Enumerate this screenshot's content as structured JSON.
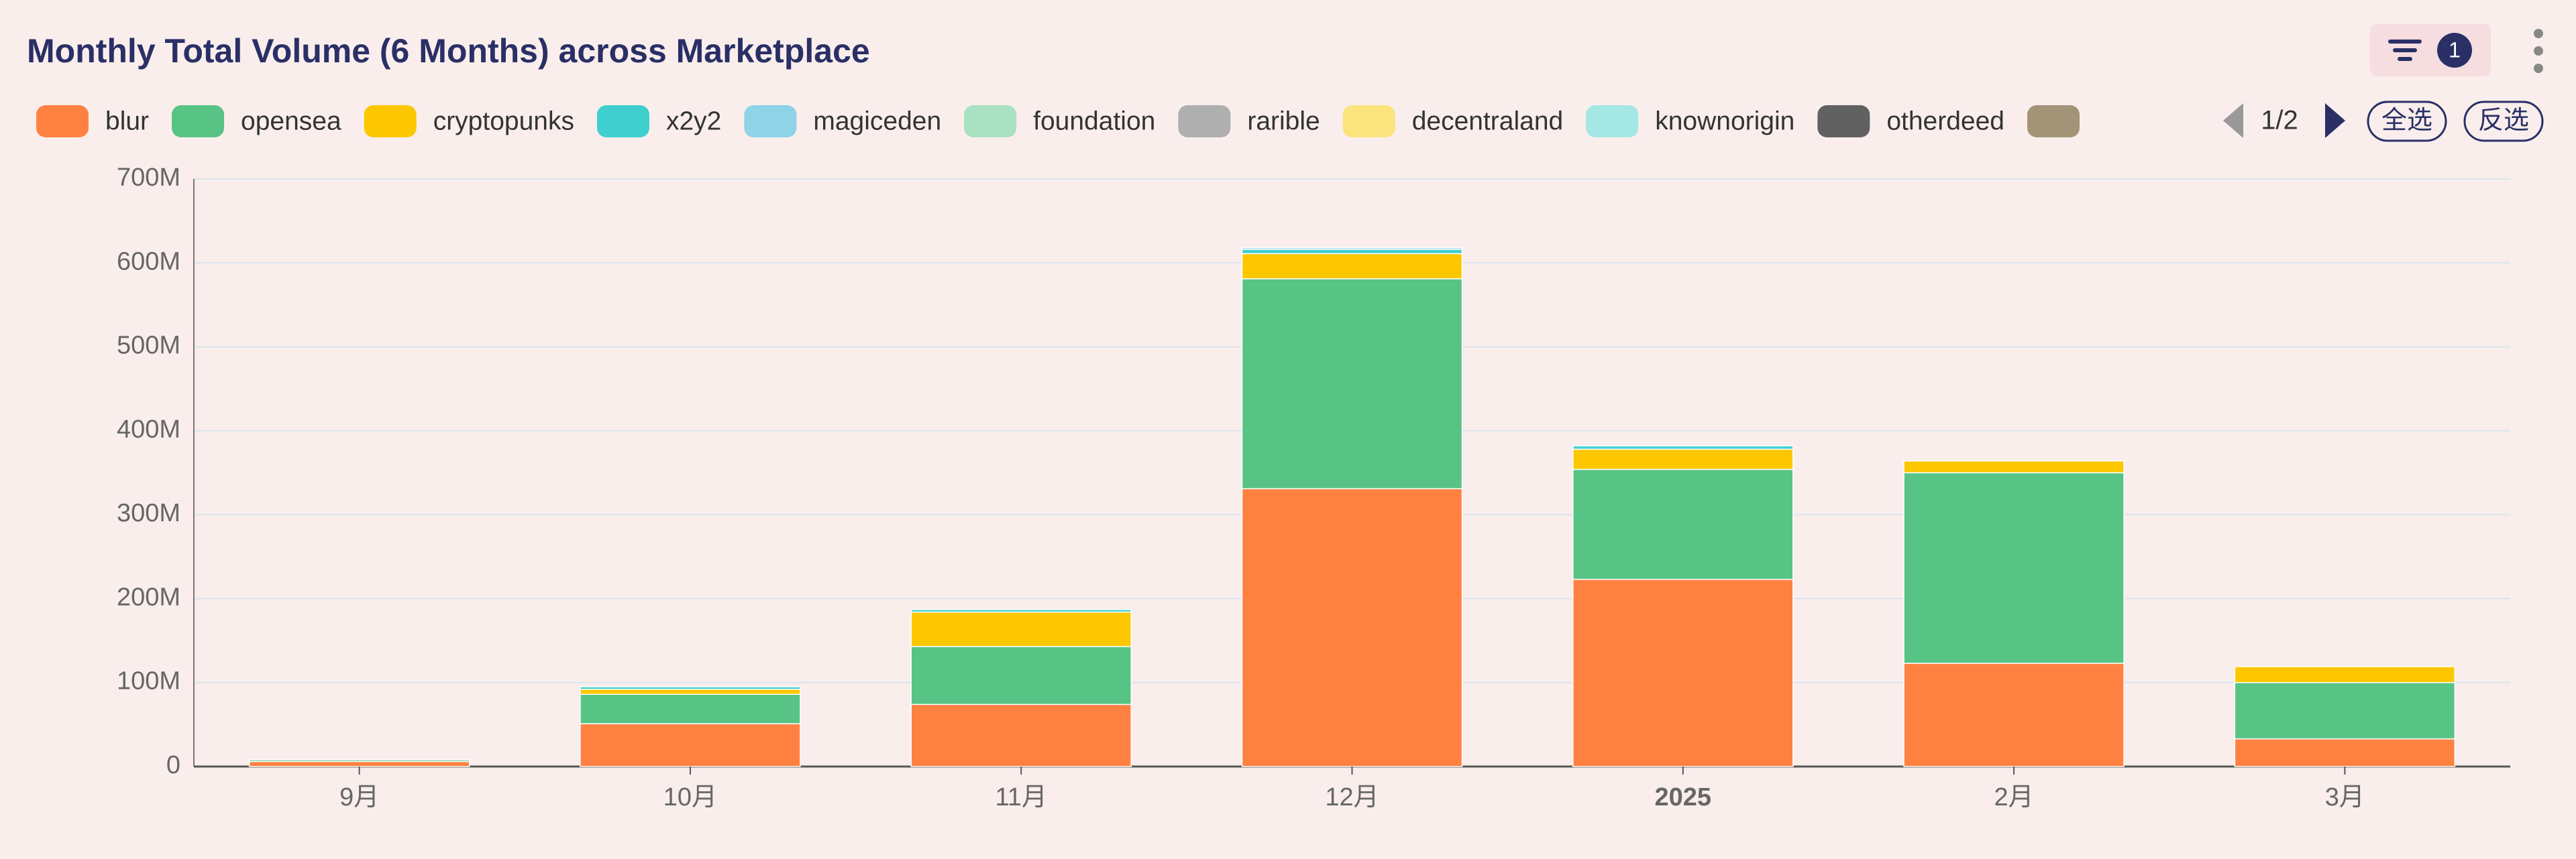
{
  "chart_data": {
    "type": "bar",
    "stacked": true,
    "title": "Monthly Total Volume (6 Months) across Marketplace",
    "categories": [
      "9月",
      "10月",
      "11月",
      "12月",
      "2025",
      "2月",
      "3月"
    ],
    "series": [
      {
        "name": "blur",
        "color": "#ff8142",
        "values": [
          6,
          51,
          74,
          331,
          223,
          123,
          33
        ]
      },
      {
        "name": "opensea",
        "color": "#57c385",
        "values": [
          2,
          35,
          69,
          250,
          131,
          227,
          67
        ]
      },
      {
        "name": "cryptopunks",
        "color": "#fdc700",
        "values": [
          0,
          6,
          41,
          30,
          24,
          14,
          19
        ]
      },
      {
        "name": "x2y2",
        "color": "#3fcfcf",
        "values": [
          0,
          3,
          3,
          5,
          4,
          0,
          0
        ]
      },
      {
        "name": "magiceden",
        "color": "#8ed3e6",
        "values": [
          0,
          0,
          0,
          2,
          0,
          0,
          0
        ]
      },
      {
        "name": "foundation",
        "color": "#a9e1c2",
        "values": [
          0,
          0,
          0,
          0,
          0,
          0,
          0
        ]
      },
      {
        "name": "rarible",
        "color": "#afafaf",
        "values": [
          0,
          0,
          0,
          0,
          0,
          0,
          0
        ]
      },
      {
        "name": "decentraland",
        "color": "#fbe37e",
        "values": [
          0,
          0,
          0,
          0,
          0,
          0,
          0
        ]
      },
      {
        "name": "knownorigin",
        "color": "#a4e7e4",
        "values": [
          0,
          0,
          0,
          0,
          0,
          0,
          0
        ]
      },
      {
        "name": "otherdeed",
        "color": "#616161",
        "values": [
          0,
          0,
          0,
          0,
          0,
          0,
          0
        ]
      }
    ],
    "ylim": [
      0,
      700
    ],
    "yticks": [
      0,
      {
        "value": 100,
        "label": "100M"
      },
      {
        "value": 200,
        "label": "200M"
      },
      {
        "value": 300,
        "label": "300M"
      },
      {
        "value": 400,
        "label": "400M"
      },
      {
        "value": 500,
        "label": "500M"
      },
      {
        "value": 600,
        "label": "600M"
      },
      {
        "value": 700,
        "label": "700M"
      }
    ],
    "grid": true,
    "legend_position": "top"
  },
  "controls": {
    "filter_count": "1",
    "page": "1/2",
    "select_all": "全选",
    "invert": "反选"
  }
}
